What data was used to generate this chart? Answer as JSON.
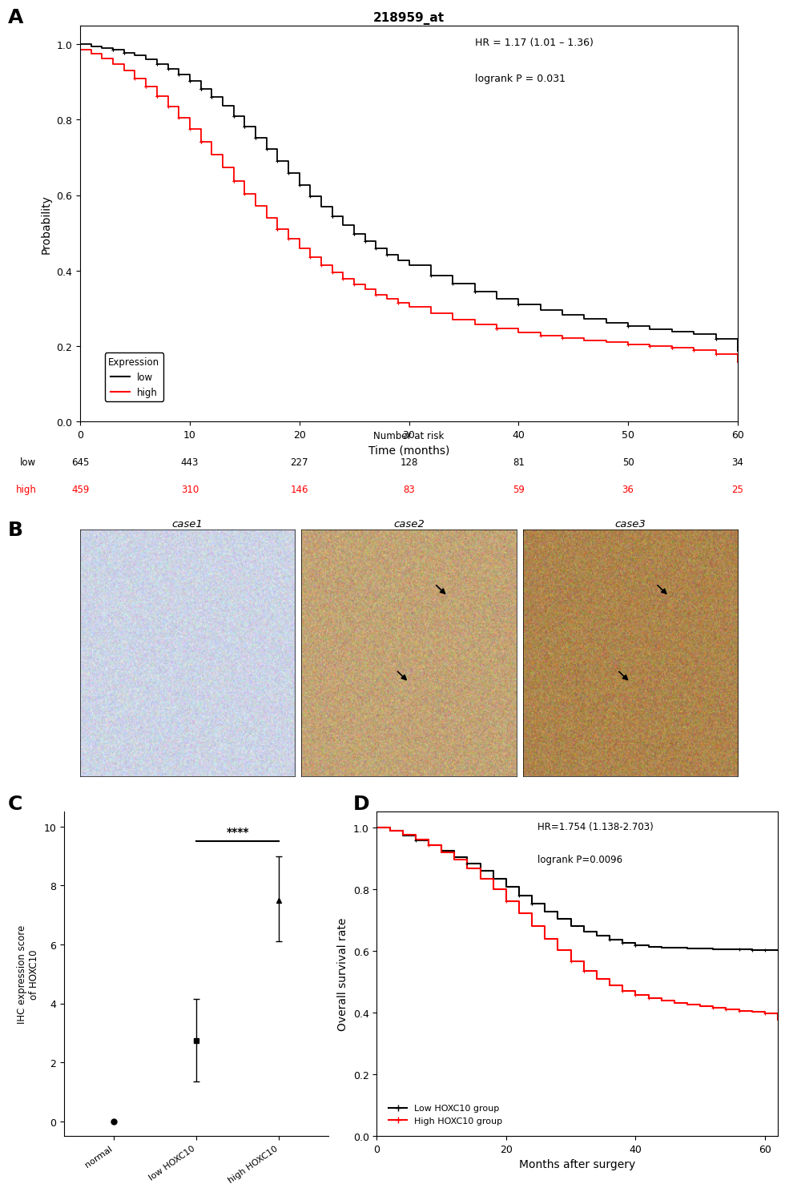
{
  "title_A": "218959_at",
  "panel_A": {
    "xlabel": "Time (months)",
    "ylabel": "Probability",
    "xlim": [
      0,
      60
    ],
    "ylim": [
      0,
      1.05
    ],
    "xticks": [
      0,
      10,
      20,
      30,
      40,
      50,
      60
    ],
    "yticks": [
      0.0,
      0.2,
      0.4,
      0.6,
      0.8,
      1.0
    ],
    "hr_text": "HR = 1.17 (1.01 – 1.36)",
    "p_text": "logrank P = 0.031",
    "legend_title": "Expression",
    "low_label": "low",
    "high_label": "high",
    "low_color": "#000000",
    "high_color": "#ff0000",
    "risk_times": [
      0,
      10,
      20,
      30,
      40,
      50,
      60
    ],
    "risk_low": [
      645,
      443,
      227,
      128,
      81,
      50,
      34
    ],
    "risk_high": [
      459,
      310,
      146,
      83,
      59,
      36,
      25
    ]
  },
  "panel_C": {
    "ylabel": "IHC expression score\nof HOXC10",
    "categories": [
      "normal",
      "low HOXC10",
      "high HOXC10"
    ],
    "means": [
      0.0,
      2.75,
      7.5
    ],
    "low_err_low": [
      0.0,
      1.4,
      1.4
    ],
    "low_err_high": [
      0.0,
      1.4,
      1.5
    ],
    "ylim": [
      -0.5,
      10.5
    ],
    "yticks": [
      0,
      2,
      4,
      6,
      8,
      10
    ],
    "significance": "****",
    "dot_color": "#000000"
  },
  "panel_D": {
    "xlabel": "Months after surgery",
    "ylabel": "Overall survival rate",
    "xlim": [
      0,
      62
    ],
    "ylim": [
      0.0,
      1.05
    ],
    "xticks": [
      0,
      20,
      40,
      60
    ],
    "yticks": [
      0.0,
      0.2,
      0.4,
      0.6,
      0.8,
      1.0
    ],
    "hr_text": "HR=1.754 (1.138-2.703)",
    "p_text": "logrank P=0.0096",
    "low_label": "Low HOXC10 group",
    "high_label": "High HOXC10 group",
    "low_color": "#000000",
    "high_color": "#ff0000"
  },
  "bg_color": "#ffffff",
  "label_fontsize": 18,
  "axis_fontsize": 10,
  "tick_fontsize": 9
}
